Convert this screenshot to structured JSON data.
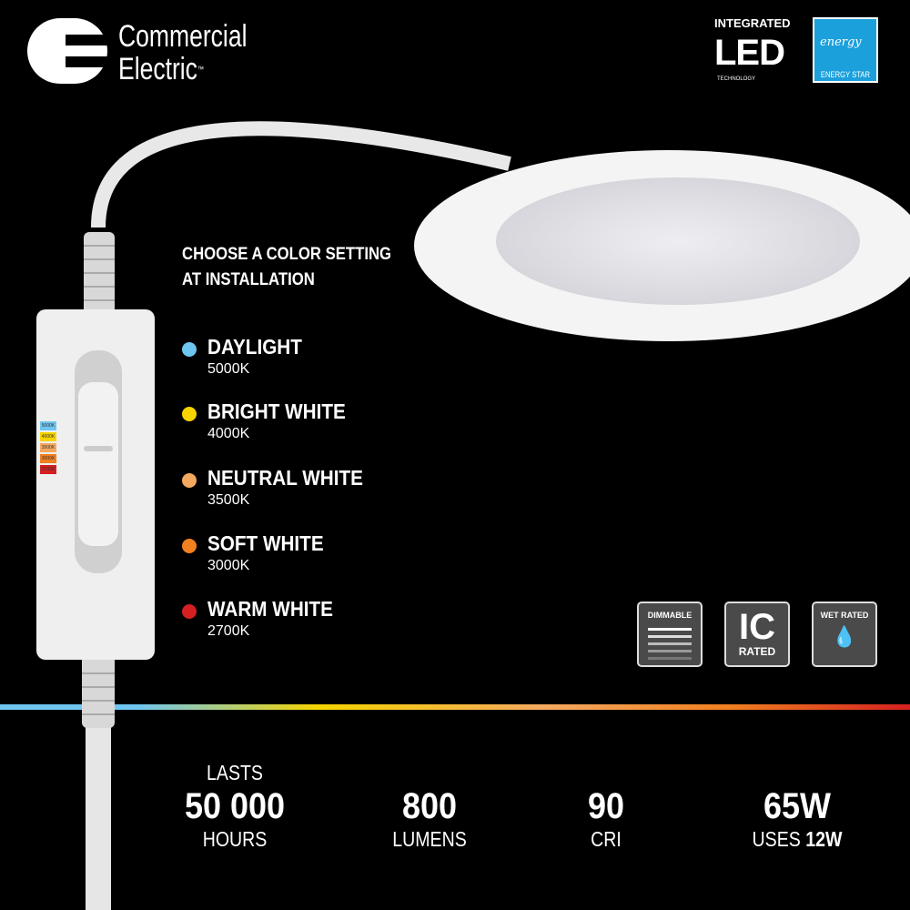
{
  "brand": {
    "line1": "Commercial",
    "line2": "Electric",
    "tm": "™"
  },
  "led_badge": {
    "top": "INTEGRATED",
    "main": "LED",
    "sub": "TECHNOLOGY",
    "reg": "®"
  },
  "energy_star": {
    "script": "energy",
    "label": "ENERGY STAR",
    "color": "#1ba0dc"
  },
  "heading": {
    "line1": "CHOOSE A COLOR SETTING",
    "line2": "AT INSTALLATION"
  },
  "options": [
    {
      "name": "DAYLIGHT",
      "temp": "5000K",
      "color": "#6ec6f0"
    },
    {
      "name": "BRIGHT WHITE",
      "temp": "4000K",
      "color": "#f5d400"
    },
    {
      "name": "NEUTRAL WHITE",
      "temp": "3500K",
      "color": "#f5a860"
    },
    {
      "name": "SOFT WHITE",
      "temp": "3000K",
      "color": "#f08020"
    },
    {
      "name": "WARM WHITE",
      "temp": "2700K",
      "color": "#d42020"
    }
  ],
  "switch_labels": [
    "5000K",
    "4000K",
    "3500K",
    "3000K",
    "2700K"
  ],
  "badges": {
    "dimmable": "DIMMABLE",
    "ic": "IC",
    "ic_sub": "RATED",
    "wet": "WET RATED"
  },
  "specs": [
    {
      "top": "LASTS",
      "big": "50 000",
      "bottom": "HOURS"
    },
    {
      "top": "",
      "big": "800",
      "bottom": "LUMENS"
    },
    {
      "top": "",
      "big": "90",
      "bottom": "CRI"
    },
    {
      "top": "",
      "big": "65W",
      "bottom_pre": "USES ",
      "bottom_bold": "12W"
    }
  ]
}
